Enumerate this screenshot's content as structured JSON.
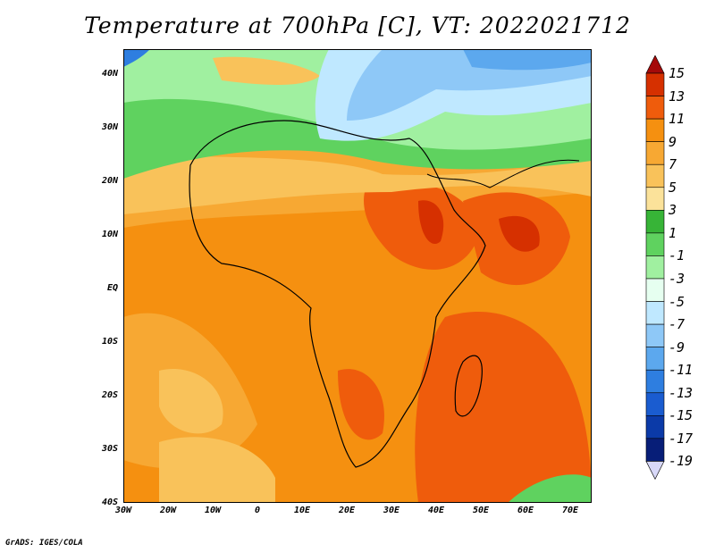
{
  "title": "Temperature at 700hPa [C], VT: 2022021712",
  "footer": "GrADS: IGES/COLA",
  "map": {
    "lat_ticks": [
      "40N",
      "30N",
      "20N",
      "10N",
      "EQ",
      "10S",
      "20S",
      "30S",
      "40S"
    ],
    "lon_ticks": [
      "30W",
      "20W",
      "10W",
      "0",
      "10E",
      "20E",
      "30E",
      "40E",
      "50E",
      "60E",
      "70E"
    ],
    "extent": {
      "lon": [
        -30,
        75
      ],
      "lat": [
        -40,
        45
      ]
    }
  },
  "colorbar": {
    "labels": [
      "15",
      "13",
      "11",
      "9",
      "7",
      "5",
      "3",
      "1",
      "-1",
      "-3",
      "-5",
      "-7",
      "-9",
      "-11",
      "-13",
      "-15",
      "-17",
      "-19"
    ],
    "colors": [
      "#a50a0a",
      "#d63000",
      "#ef5c0c",
      "#f59010",
      "#f7a833",
      "#f9c25a",
      "#fbe29a",
      "#37b437",
      "#5fd25f",
      "#a0f0a0",
      "#e6fff0",
      "#bfe8ff",
      "#8ec8f7",
      "#5ca8ee",
      "#2e7ee0",
      "#1a5cd0",
      "#0b3aa8",
      "#071e78",
      "#08105a"
    ]
  }
}
